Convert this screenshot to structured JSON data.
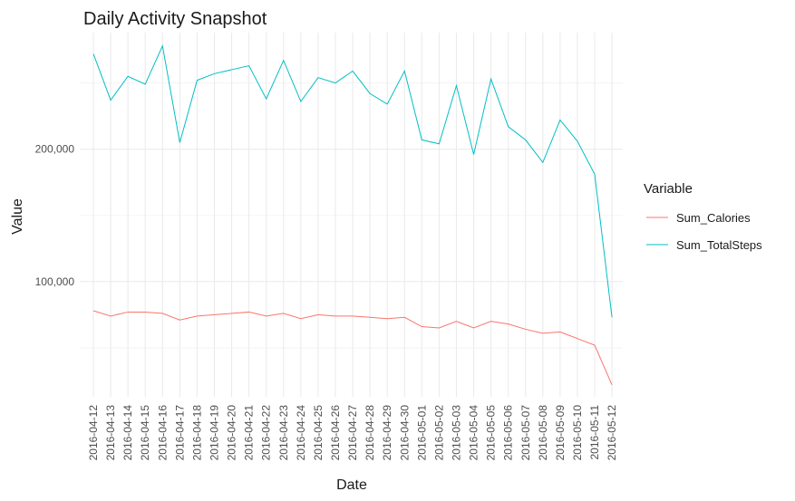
{
  "chart_data": {
    "type": "line",
    "title": "Daily Activity Snapshot",
    "xlabel": "Date",
    "ylabel": "Value",
    "ylim": [
      13000,
      288000
    ],
    "y_ticks": [
      100000,
      200000
    ],
    "y_tick_labels": [
      "100,000",
      "200,000"
    ],
    "grid": true,
    "legend_title": "Variable",
    "legend_position": "right",
    "categories": [
      "2016-04-12",
      "2016-04-13",
      "2016-04-14",
      "2016-04-15",
      "2016-04-16",
      "2016-04-17",
      "2016-04-18",
      "2016-04-19",
      "2016-04-20",
      "2016-04-21",
      "2016-04-22",
      "2016-04-23",
      "2016-04-24",
      "2016-04-25",
      "2016-04-26",
      "2016-04-27",
      "2016-04-28",
      "2016-04-29",
      "2016-04-30",
      "2016-05-01",
      "2016-05-02",
      "2016-05-03",
      "2016-05-04",
      "2016-05-05",
      "2016-05-06",
      "2016-05-07",
      "2016-05-08",
      "2016-05-09",
      "2016-05-10",
      "2016-05-11",
      "2016-05-12"
    ],
    "series": [
      {
        "name": "Sum_Calories",
        "color": "#F8766D",
        "values": [
          78000,
          74000,
          77000,
          77000,
          76000,
          71000,
          74000,
          75000,
          76000,
          77000,
          74000,
          76000,
          72000,
          75000,
          74000,
          74000,
          73000,
          72000,
          73000,
          66000,
          65000,
          70000,
          65000,
          70000,
          68000,
          64000,
          61000,
          62000,
          57000,
          52000,
          22000
        ]
      },
      {
        "name": "Sum_TotalSteps",
        "color": "#00BFC4",
        "values": [
          272000,
          237000,
          255000,
          249000,
          278000,
          205000,
          252000,
          257000,
          260000,
          263000,
          238000,
          267000,
          236000,
          254000,
          250000,
          259000,
          242000,
          234000,
          259000,
          207000,
          204000,
          248000,
          196000,
          253000,
          217000,
          207000,
          190000,
          222000,
          206000,
          181000,
          73000
        ]
      }
    ]
  }
}
